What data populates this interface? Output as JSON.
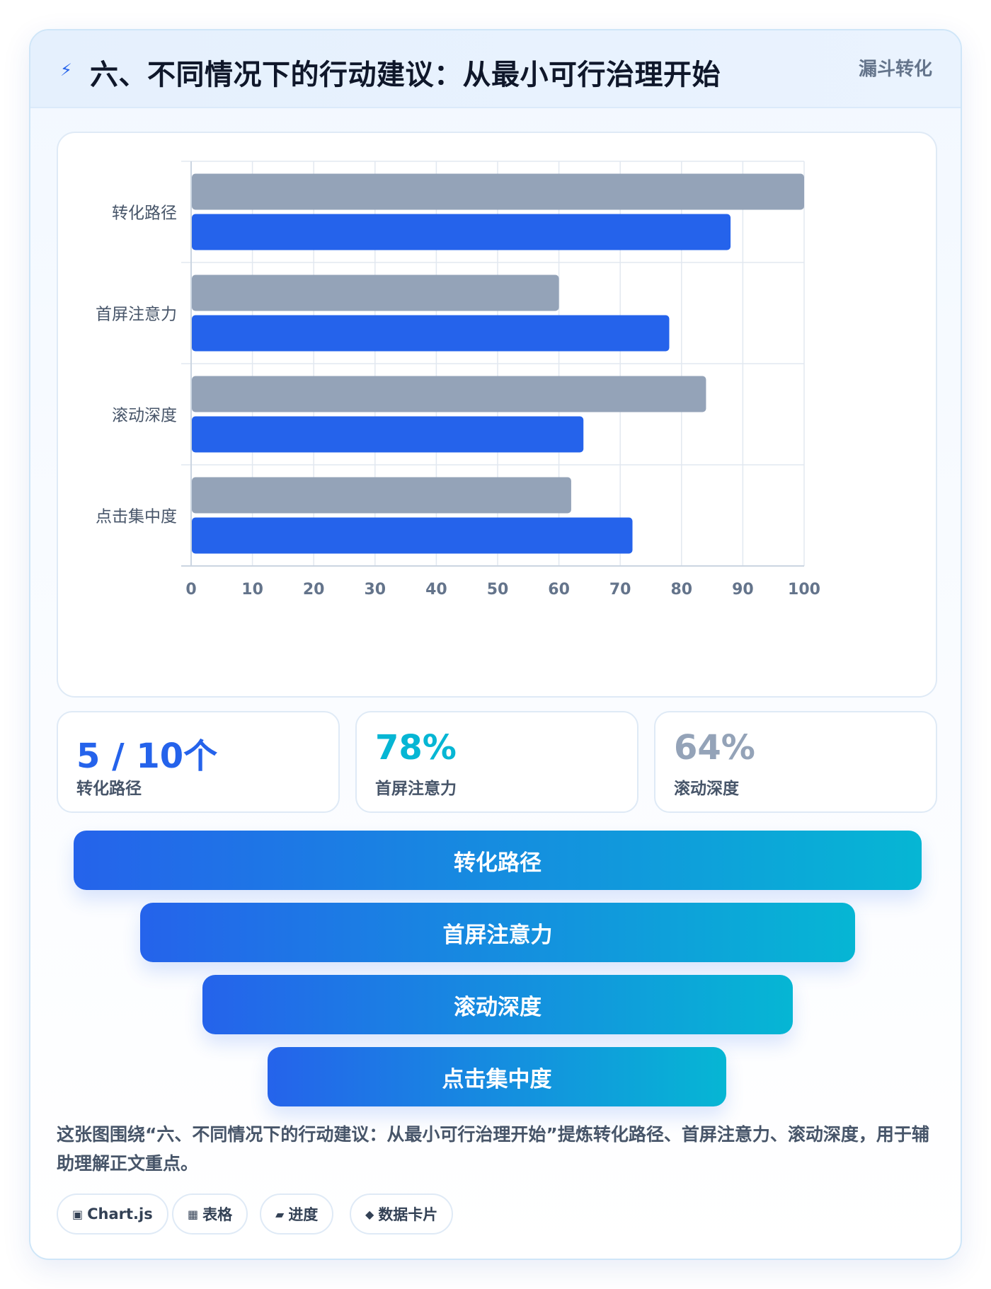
{
  "header": {
    "icon": "lightning-icon",
    "title": "六、不同情况下的行动建议：从最小可行治理开始",
    "tag": "漏斗转化"
  },
  "chart_data": {
    "type": "bar",
    "orientation": "horizontal",
    "categories": [
      "转化路径",
      "首屏注意力",
      "滚动深度",
      "点击集中度"
    ],
    "series": [
      {
        "values": [
          100,
          60,
          84,
          62
        ],
        "color": "#94a3b8"
      },
      {
        "values": [
          88,
          78,
          64,
          72
        ],
        "color": "#2563eb"
      }
    ],
    "xlim": [
      0,
      100
    ],
    "xticks": [
      0,
      10,
      20,
      30,
      40,
      50,
      60,
      70,
      80,
      90,
      100
    ],
    "grid": true,
    "legend": "none"
  },
  "stats": [
    {
      "value": "5 / 10个",
      "label": "转化路径",
      "color": "#2563eb"
    },
    {
      "value": "78%",
      "label": "首屏注意力",
      "color": "#06b6d4"
    },
    {
      "value": "64%",
      "label": "滚动深度",
      "color": "#94a3b8"
    }
  ],
  "funnel": [
    "转化路径",
    "首屏注意力",
    "滚动深度",
    "点击集中度"
  ],
  "note": "这张图围绕“六、不同情况下的行动建议：从最小可行治理开始”提炼转化路径、首屏注意力、滚动深度，用于辅助理解正文重点。",
  "chips": [
    {
      "icon": "▣",
      "icon_name": "chart-icon",
      "label": "Chart.js"
    },
    {
      "icon": "▦",
      "icon_name": "table-icon",
      "label": "表格"
    },
    {
      "icon": "▰",
      "icon_name": "progress-icon",
      "label": "进度"
    },
    {
      "icon": "◆",
      "icon_name": "diamond-icon",
      "label": "数据卡片"
    }
  ]
}
